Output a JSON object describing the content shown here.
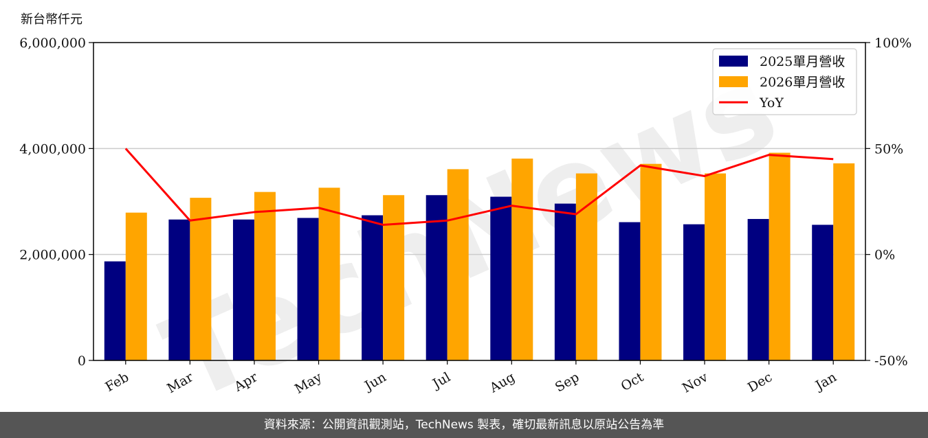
{
  "unit_label": "新台幣仟元",
  "footer_text": "資料來源：公開資訊觀測站，TechNews 製表，確切最新訊息以原站公告為準",
  "watermark": "TechNews",
  "colors": {
    "series_2025": "#000080",
    "series_2026": "#FFA500",
    "yoy": "#FF0000",
    "footer_bg": "#555555"
  },
  "chart_data": {
    "type": "bar",
    "categories": [
      "Feb",
      "Mar",
      "Apr",
      "May",
      "Jun",
      "Jul",
      "Aug",
      "Sep",
      "Oct",
      "Nov",
      "Dec",
      "Jan"
    ],
    "series": [
      {
        "name": "2025單月營收",
        "values": [
          1870000,
          2660000,
          2660000,
          2690000,
          2740000,
          3120000,
          3090000,
          2960000,
          2610000,
          2570000,
          2670000,
          2560000
        ]
      },
      {
        "name": "2026單月營收",
        "values": [
          2790000,
          3070000,
          3180000,
          3260000,
          3120000,
          3610000,
          3810000,
          3530000,
          3710000,
          3530000,
          3920000,
          3720000
        ]
      }
    ],
    "line_series": {
      "name": "YoY",
      "axis": "right",
      "values": [
        50,
        16,
        20,
        22,
        14,
        16,
        23,
        19,
        42,
        37,
        47,
        45
      ]
    },
    "ylim": [
      0,
      6000000
    ],
    "yticks": [
      "0",
      "2,000,000",
      "4,000,000",
      "6,000,000"
    ],
    "y2lim": [
      -50,
      100
    ],
    "y2ticks": [
      "-50%",
      "0%",
      "50%",
      "100%"
    ],
    "grid": "horizontal",
    "legend": "top-right"
  }
}
